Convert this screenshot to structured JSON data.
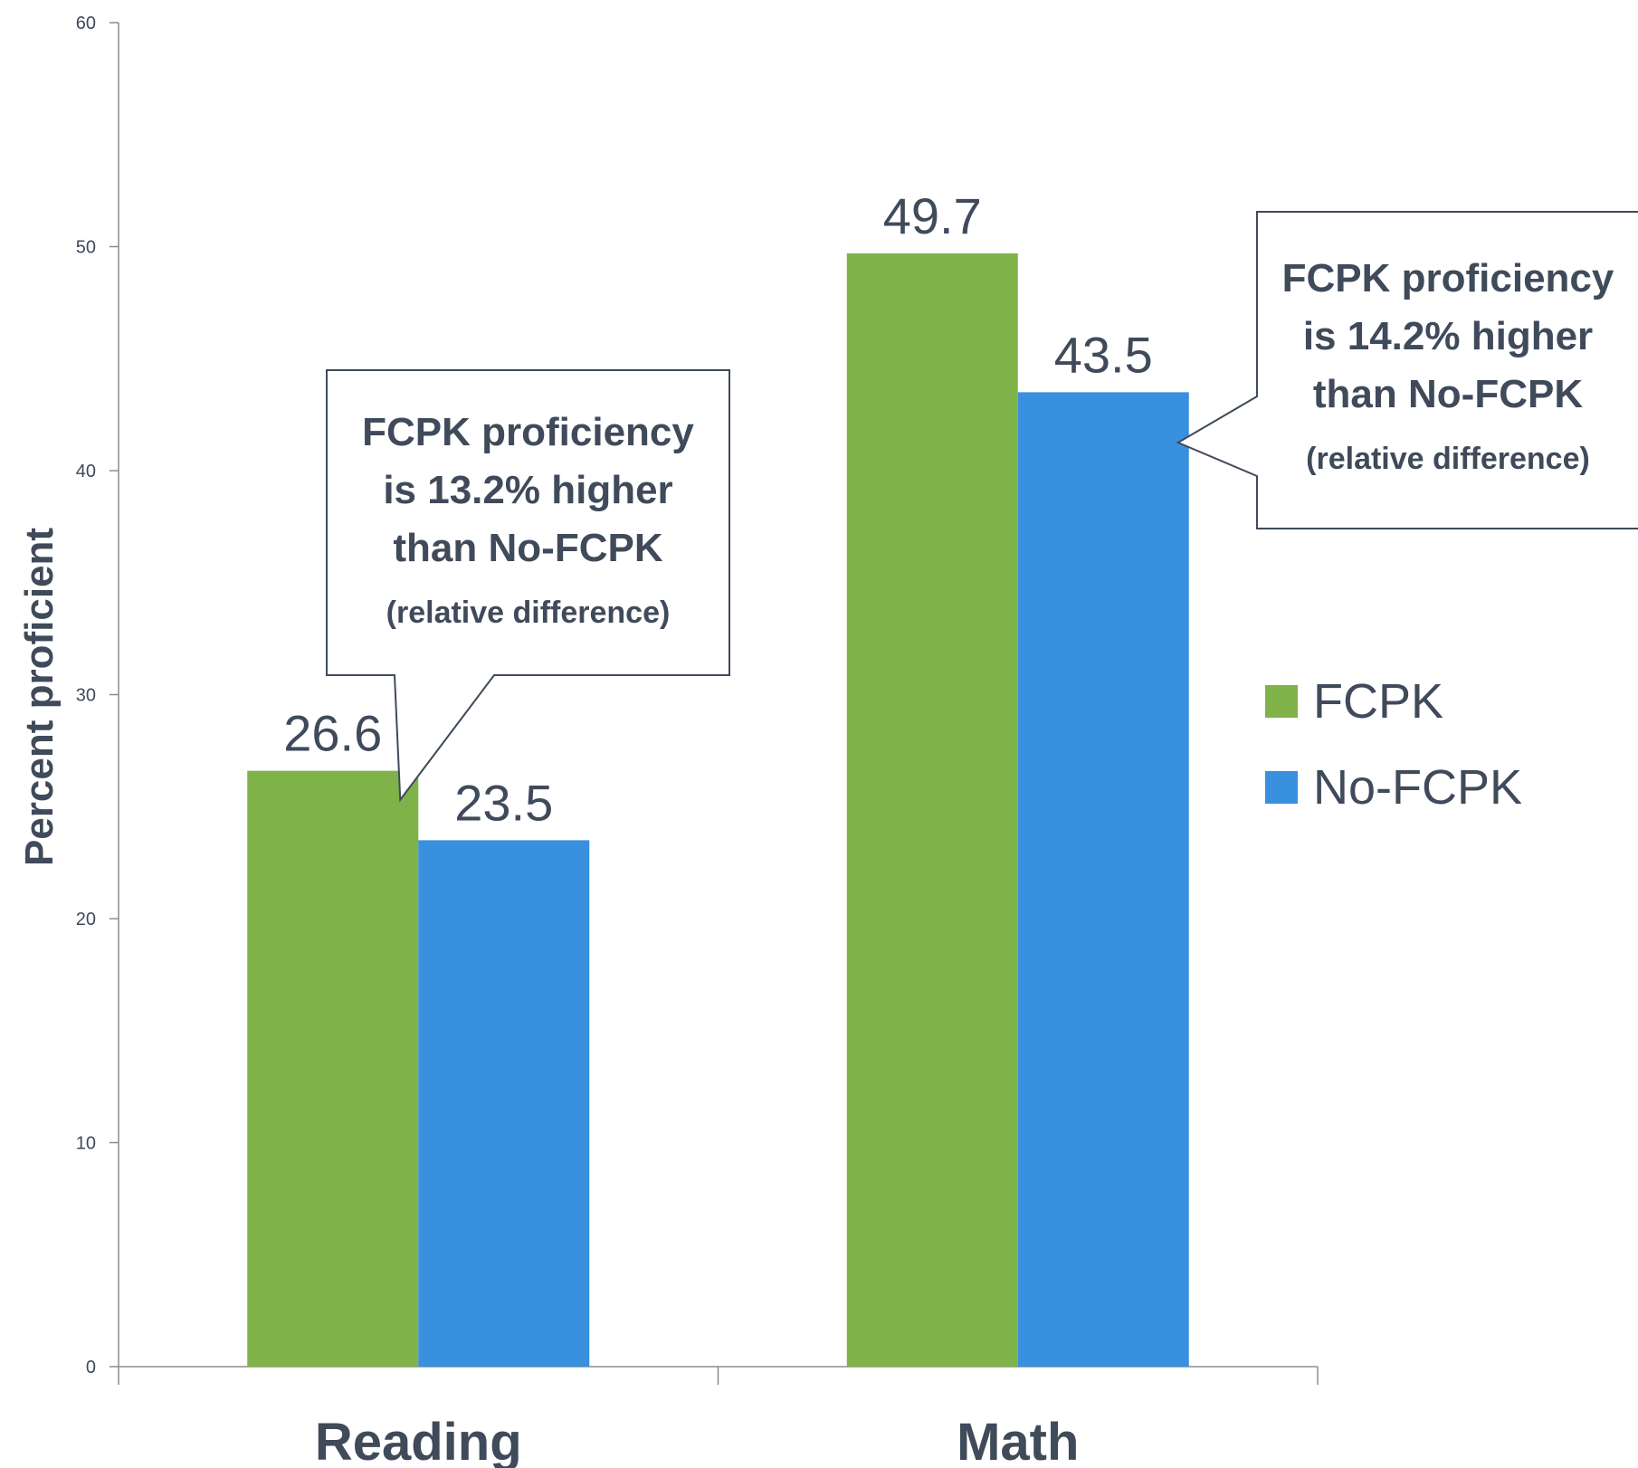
{
  "chart_data": {
    "type": "bar",
    "categories": [
      "Reading",
      "Math"
    ],
    "series": [
      {
        "name": "FCPK",
        "values": [
          26.6,
          49.7
        ],
        "color": "#80b24a"
      },
      {
        "name": "No-FCPK",
        "values": [
          23.5,
          43.5
        ],
        "color": "#3990de"
      }
    ],
    "value_labels": [
      [
        "26.6",
        "49.7"
      ],
      [
        "23.5",
        "43.5"
      ]
    ],
    "title": "",
    "xlabel": "",
    "ylabel": "Percent proficient",
    "ylim": [
      0,
      60
    ],
    "yticks": [
      0,
      10,
      20,
      30,
      40,
      50,
      60
    ],
    "grid": false,
    "legend_position": "right",
    "annotations": [
      {
        "category": "Reading",
        "lines": [
          "FCPK proficiency",
          "is 13.2% higher",
          "than No-FCPK"
        ],
        "note": "(relative difference)"
      },
      {
        "category": "Math",
        "lines": [
          "FCPK proficiency",
          "is 14.2%  higher",
          "than No-FCPK"
        ],
        "note": "(relative difference)"
      }
    ],
    "colors": {
      "text": "#3f4a5a",
      "axis": "#8c8c8c",
      "callout_border": "#3f4a5a"
    }
  }
}
